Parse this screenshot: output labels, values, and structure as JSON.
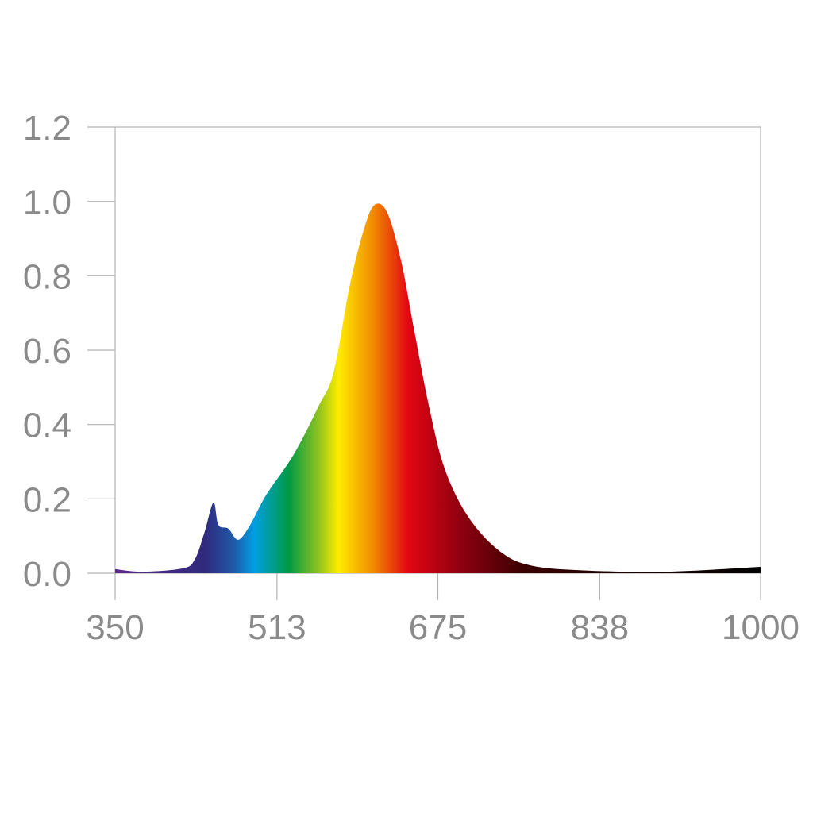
{
  "chart_data": {
    "type": "area",
    "title": "",
    "xlabel": "",
    "ylabel": "",
    "xlim": [
      350,
      1000
    ],
    "ylim": [
      0,
      1.2
    ],
    "grid": false,
    "x_ticks": [
      "350",
      "513",
      "675",
      "838",
      "1000"
    ],
    "y_ticks": [
      "0.0",
      "0.2",
      "0.4",
      "0.6",
      "0.8",
      "1.0",
      "1.2"
    ],
    "fill": "visible-spectrum gradient by wavelength",
    "series": [
      {
        "x": [
          350,
          378,
          418,
          430,
          440,
          449,
          454,
          464,
          474,
          486,
          502,
          530,
          555,
          570,
          586,
          600,
          611,
          624,
          638,
          650,
          666,
          682,
          706,
          738,
          770,
          826,
          906,
          1000
        ],
        "y": [
          0.011,
          0.004,
          0.013,
          0.036,
          0.11,
          0.19,
          0.13,
          0.12,
          0.09,
          0.13,
          0.21,
          0.32,
          0.45,
          0.54,
          0.77,
          0.92,
          0.99,
          0.97,
          0.84,
          0.67,
          0.45,
          0.28,
          0.15,
          0.058,
          0.02,
          0.007,
          0.004,
          0.017
        ]
      }
    ],
    "gradient_stops": [
      {
        "nm": 350,
        "color": "#5e2a8a"
      },
      {
        "nm": 440,
        "color": "#2f2a7c"
      },
      {
        "nm": 470,
        "color": "#1f5aa8"
      },
      {
        "nm": 490,
        "color": "#009fe3"
      },
      {
        "nm": 525,
        "color": "#009a44"
      },
      {
        "nm": 555,
        "color": "#8fc31f"
      },
      {
        "nm": 575,
        "color": "#ffec00"
      },
      {
        "nm": 610,
        "color": "#f08a00"
      },
      {
        "nm": 645,
        "color": "#e30613"
      },
      {
        "nm": 700,
        "color": "#8b0010"
      },
      {
        "nm": 760,
        "color": "#3a0000"
      },
      {
        "nm": 1000,
        "color": "#000000"
      }
    ],
    "axis_color": "#b3b3b3",
    "tick_label_color": "#8a8a8a"
  }
}
